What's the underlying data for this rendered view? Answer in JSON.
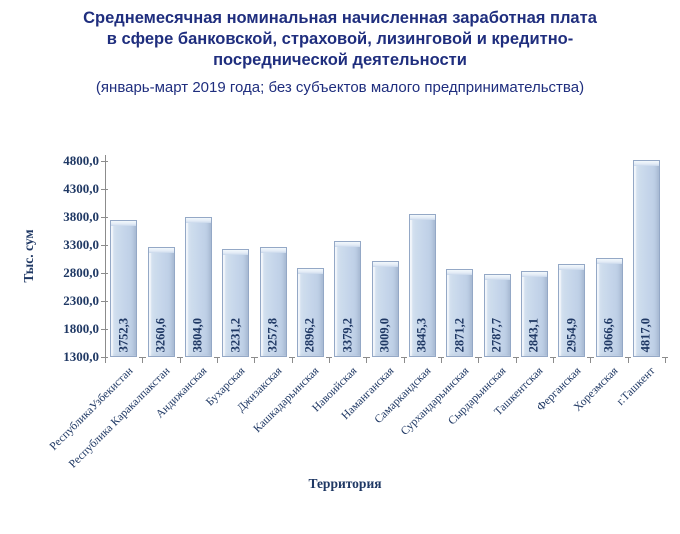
{
  "title": {
    "lines": [
      "Среднемесячная номинальная начисленная заработная плата",
      "в сфере банковской, страховой, лизинговой и кредитно-",
      "посреднической деятельности"
    ]
  },
  "subtitle": "(январь-март 2019 года; без субъектов малого предпринимательства)",
  "chart_data": {
    "type": "bar",
    "title": "Среднемесячная номинальная начисленная заработная плата в сфере банковской, страховой, лизинговой и кредитно-посреднической деятельности",
    "subtitle": "(январь-март 2019 года; без субъектов малого предпринимательства)",
    "xlabel": "Территория",
    "ylabel": "Тыс. сум",
    "categories": [
      "РеспубликаУзбекистан",
      "Республика Каракалпакстан",
      "Андижанская",
      "Бухарская",
      "Джизакская",
      "Кашкадарьинская",
      "Навоийская",
      "Наманганская",
      "Самаркандская",
      "Сурхандарьинская",
      "Сырдарьинская",
      "Ташкентская",
      "Ферганская",
      "Хорезмская",
      "г.Ташкент"
    ],
    "values": [
      3752.3,
      3260.6,
      3804.0,
      3231.2,
      3257.8,
      2896.2,
      3379.2,
      3009.0,
      3845.3,
      2871.2,
      2787.7,
      2843.1,
      2954.9,
      3066.6,
      4817.0
    ],
    "value_labels": [
      "3752,3",
      "3260,6",
      "3804,0",
      "3231,2",
      "3257,8",
      "2896,2",
      "3379,2",
      "3009,0",
      "3845,3",
      "2871,2",
      "2787,7",
      "2843,1",
      "2954,9",
      "3066,6",
      "4817,0"
    ],
    "ylim": [
      1300,
      4800
    ],
    "yticks": [
      {
        "value": 4800,
        "label": "4800,0"
      },
      {
        "value": 4300,
        "label": "4300,0"
      },
      {
        "value": 3800,
        "label": "3800,0"
      },
      {
        "value": 3300,
        "label": "3300,0"
      },
      {
        "value": 2800,
        "label": "2800,0"
      },
      {
        "value": 2300,
        "label": "2300,0"
      },
      {
        "value": 1800,
        "label": "1800,0"
      },
      {
        "value": 1300,
        "label": "1300,0"
      }
    ],
    "grid": false,
    "legend": "none"
  },
  "colors": {
    "title_text": "#1f2e7e",
    "chart_text": "#1f3864",
    "bar_fill": "#c5d5ea",
    "bar_highlight": "#eef4fa",
    "bar_edge": "#94a8c6",
    "axis": "#8c8c8c",
    "background": "#ffffff"
  }
}
